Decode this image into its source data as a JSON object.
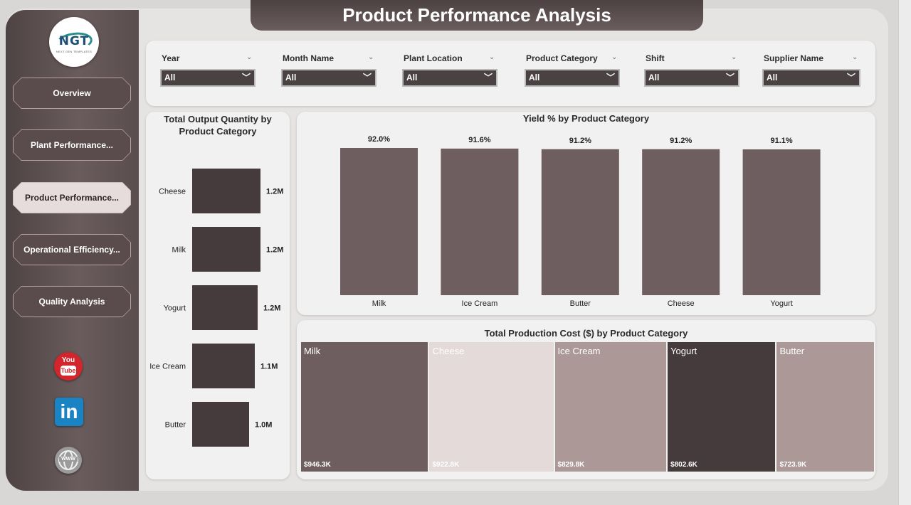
{
  "title": "Product Performance Analysis",
  "logo": {
    "text": "NGT",
    "subtitle": "NEXT GEN TEMPLATES"
  },
  "nav": [
    {
      "label": "Overview",
      "active": false
    },
    {
      "label": "Plant Performance...",
      "active": false
    },
    {
      "label": "Product Performance...",
      "active": true
    },
    {
      "label": "Operational Efficiency...",
      "active": false
    },
    {
      "label": "Quality Analysis",
      "active": false
    }
  ],
  "social": {
    "youtube_top": "You",
    "youtube_bottom": "Tube",
    "linkedin": "in",
    "web": "WWW"
  },
  "filters": [
    {
      "label": "Year",
      "value": "All"
    },
    {
      "label": "Month Name",
      "value": "All"
    },
    {
      "label": "Plant Location",
      "value": "All"
    },
    {
      "label": "Product Category",
      "value": "All"
    },
    {
      "label": "Shift",
      "value": "All"
    },
    {
      "label": "Supplier Name",
      "value": "All"
    }
  ],
  "chart_data": [
    {
      "type": "bar",
      "orientation": "horizontal",
      "title": "Total Output Quantity by Product Category",
      "categories": [
        "Cheese",
        "Milk",
        "Yogurt",
        "Ice Cream",
        "Butter"
      ],
      "values": [
        1.2,
        1.2,
        1.15,
        1.1,
        1.0
      ],
      "value_labels": [
        "1.2M",
        "1.2M",
        "1.2M",
        "1.1M",
        "1.0M"
      ],
      "unit": "M",
      "color": "#463b3c"
    },
    {
      "type": "bar",
      "title": "Yield % by Product Category",
      "categories": [
        "Milk",
        "Ice Cream",
        "Butter",
        "Cheese",
        "Yogurt"
      ],
      "values": [
        92.0,
        91.6,
        91.2,
        91.2,
        91.1
      ],
      "value_labels": [
        "92.0%",
        "91.6%",
        "91.2%",
        "91.2%",
        "91.1%"
      ],
      "color": "#6e5e5f"
    },
    {
      "type": "treemap",
      "title": "Total Production Cost ($) by Product Category",
      "categories": [
        "Milk",
        "Cheese",
        "Ice Cream",
        "Yogurt",
        "Butter"
      ],
      "values": [
        946.3,
        922.8,
        829.8,
        802.6,
        723.9
      ],
      "value_labels": [
        "$946.3K",
        "$922.8K",
        "$829.8K",
        "$802.6K",
        "$723.9K"
      ],
      "colors": [
        "#6e5e5f",
        "#e4dada",
        "#ad9898",
        "#463b3c",
        "#ad9898"
      ]
    }
  ]
}
